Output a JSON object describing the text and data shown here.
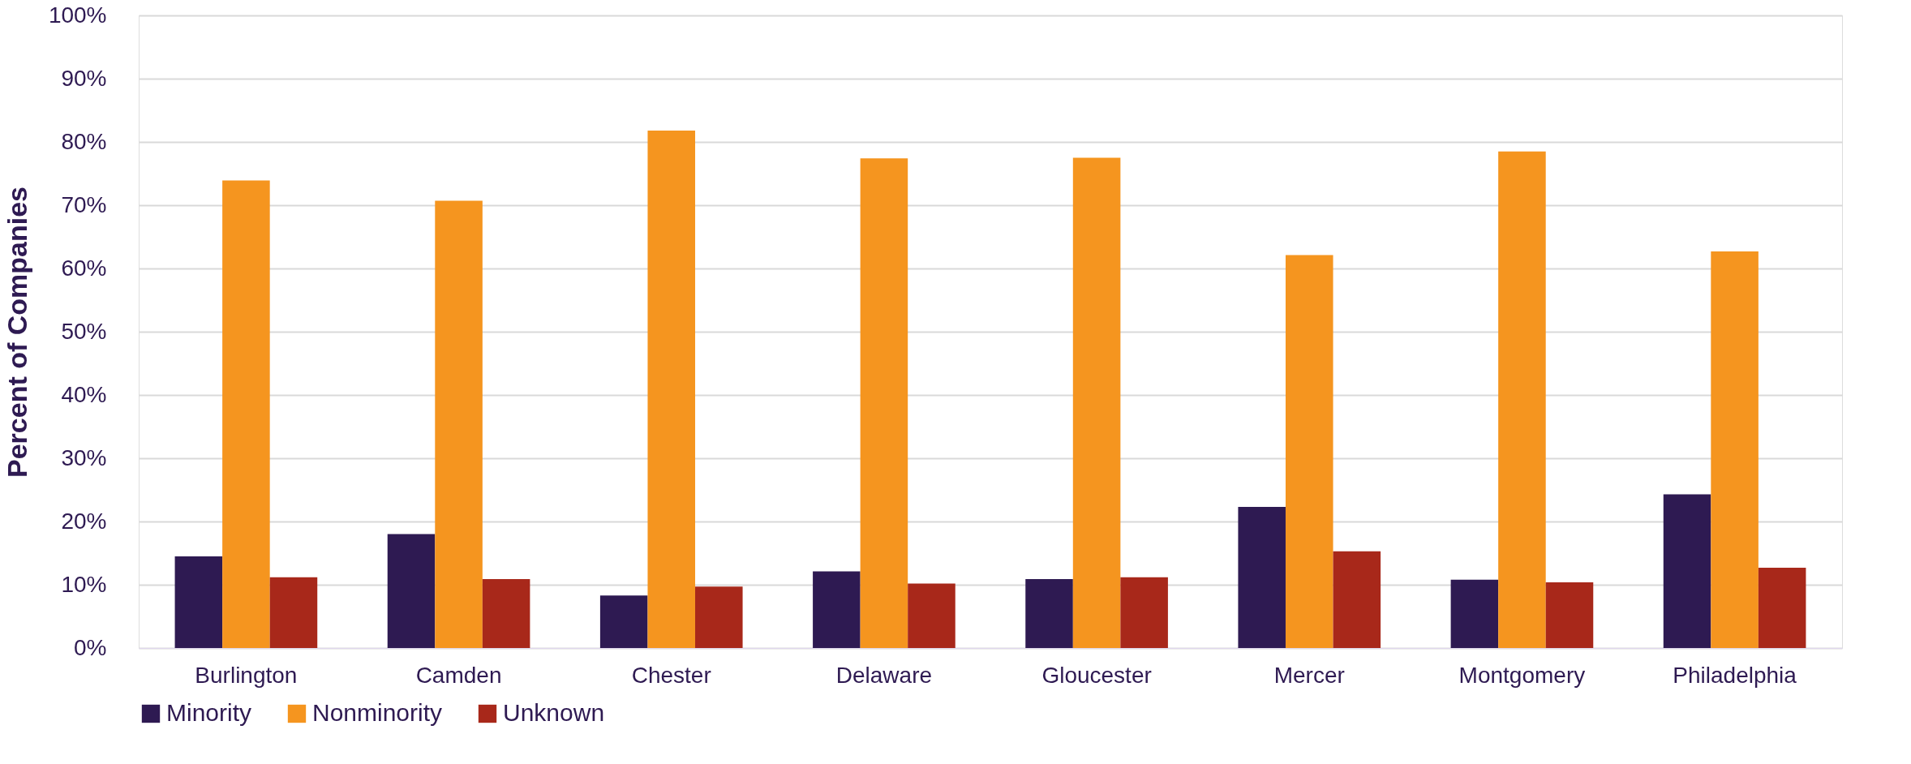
{
  "chart_data": {
    "type": "bar",
    "ylabel": "Percent of Companies",
    "categories": [
      "Burlington",
      "Camden",
      "Chester",
      "Delaware",
      "Gloucester",
      "Mercer",
      "Montgomery",
      "Philadelphia"
    ],
    "series": [
      {
        "name": "Minority",
        "color": "#2e1a52",
        "values": [
          14.5,
          18.0,
          8.3,
          12.1,
          10.9,
          22.3,
          10.8,
          24.3
        ]
      },
      {
        "name": "Nonminority",
        "color": "#f5951f",
        "values": [
          73.9,
          70.7,
          81.8,
          77.4,
          77.5,
          62.1,
          78.5,
          62.7
        ]
      },
      {
        "name": "Unknown",
        "color": "#a8281a",
        "values": [
          11.2,
          10.9,
          9.7,
          10.2,
          11.2,
          15.3,
          10.4,
          12.7
        ]
      }
    ],
    "ylim": [
      0,
      100
    ],
    "yticks": [
      {
        "value": 0,
        "label": "0%"
      },
      {
        "value": 10,
        "label": "10%"
      },
      {
        "value": 20,
        "label": "20%"
      },
      {
        "value": 30,
        "label": "30%"
      },
      {
        "value": 40,
        "label": "40%"
      },
      {
        "value": 50,
        "label": "50%"
      },
      {
        "value": 60,
        "label": "60%"
      },
      {
        "value": 70,
        "label": "70%"
      },
      {
        "value": 80,
        "label": "80%"
      },
      {
        "value": 90,
        "label": "90%"
      },
      {
        "value": 100,
        "label": "100%"
      }
    ],
    "grid": "y",
    "legend": "bottom"
  }
}
